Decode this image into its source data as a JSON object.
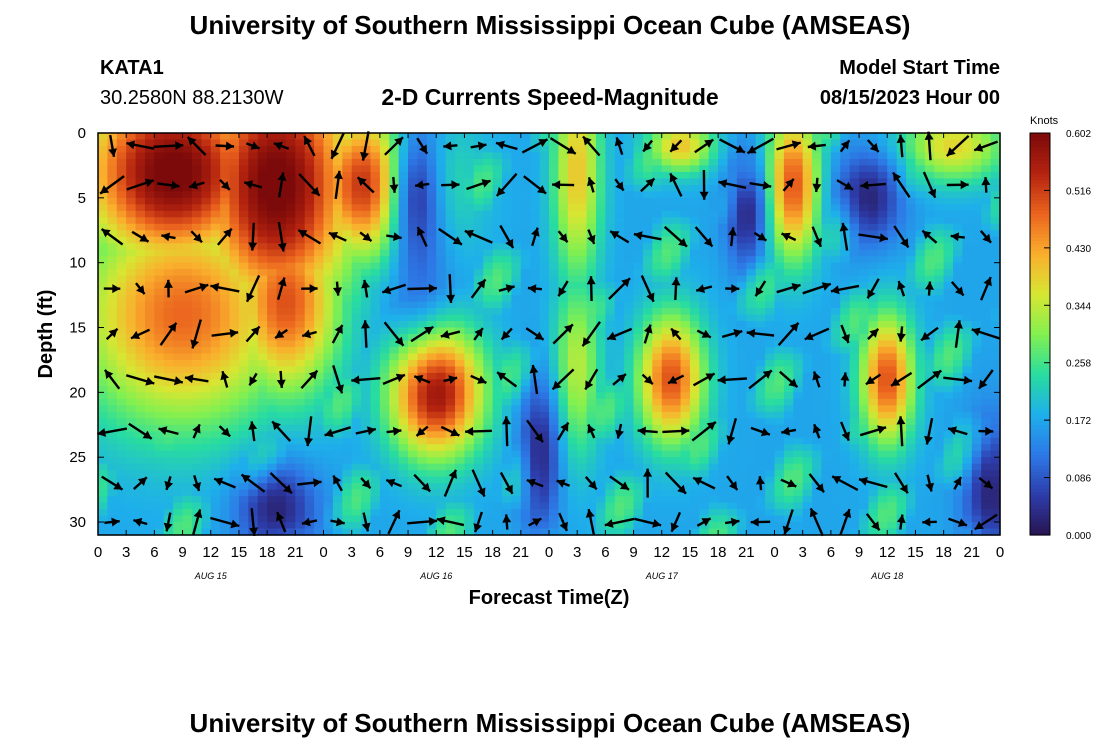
{
  "header": {
    "title": "University of Southern Mississippi Ocean Cube (AMSEAS)",
    "station_id": "KATA1",
    "station_coords": "30.2580N  88.2130W",
    "chart_title": "2-D Currents Speed-Magnitude",
    "model_start_label": "Model Start Time",
    "model_start_value": "08/15/2023 Hour 00"
  },
  "footer": {
    "title": "University of Southern Mississippi Ocean Cube (AMSEAS)"
  },
  "chart_data": {
    "type": "heatmap",
    "title": "2-D Currents Speed-Magnitude",
    "xlabel": "Forecast Time(Z)",
    "ylabel": "Depth (ft)",
    "xlim": [
      0,
      96
    ],
    "ylim": [
      31,
      0
    ],
    "x_ticks": [
      0,
      3,
      6,
      9,
      12,
      15,
      18,
      21,
      24,
      27,
      30,
      33,
      36,
      39,
      42,
      45,
      48,
      51,
      54,
      57,
      60,
      63,
      66,
      69,
      72,
      75,
      78,
      81,
      84,
      87,
      90,
      93,
      96
    ],
    "x_tick_labels": [
      "0",
      "3",
      "6",
      "9",
      "12",
      "15",
      "18",
      "21",
      "0",
      "3",
      "6",
      "9",
      "12",
      "15",
      "18",
      "21",
      "0",
      "3",
      "6",
      "9",
      "12",
      "15",
      "18",
      "21",
      "0",
      "3",
      "6",
      "9",
      "12",
      "15",
      "18",
      "21",
      "0"
    ],
    "day_labels": [
      {
        "hour": 12,
        "label": "AUG 15"
      },
      {
        "hour": 36,
        "label": "AUG 16"
      },
      {
        "hour": 60,
        "label": "AUG 17"
      },
      {
        "hour": 84,
        "label": "AUG 18"
      }
    ],
    "y_ticks": [
      0,
      5,
      10,
      15,
      20,
      25,
      30
    ],
    "colorbar": {
      "label": "Knots",
      "min": 0.0,
      "max": 0.602,
      "tick_values": [
        0.0,
        0.086,
        0.172,
        0.258,
        0.344,
        0.43,
        0.516,
        0.602
      ],
      "tick_labels": [
        "0.000",
        "0.086",
        "0.172",
        "0.258",
        "0.344",
        "0.430",
        "0.516",
        "0.602"
      ]
    },
    "speed_field": {
      "units": "knots",
      "blobs": [
        {
          "hour": 8,
          "depth": 3,
          "sx": 7,
          "sy": 5,
          "value": 0.62
        },
        {
          "hour": 19,
          "depth": 4,
          "sx": 6,
          "sy": 7,
          "value": 0.62
        },
        {
          "hour": 30,
          "depth": 4,
          "sx": 5,
          "sy": 4,
          "value": 0.58
        },
        {
          "hour": 9,
          "depth": 14,
          "sx": 8,
          "sy": 6,
          "value": 0.48
        },
        {
          "hour": 20,
          "depth": 13,
          "sx": 4,
          "sy": 5,
          "value": 0.5
        },
        {
          "hour": 36,
          "depth": 20,
          "sx": 3.5,
          "sy": 3.5,
          "value": 0.58
        },
        {
          "hour": 51,
          "depth": 3,
          "sx": 1.8,
          "sy": 6,
          "value": 0.4
        },
        {
          "hour": 51,
          "depth": 18,
          "sx": 1.8,
          "sy": 5,
          "value": 0.34
        },
        {
          "hour": 61,
          "depth": 19,
          "sx": 2.5,
          "sy": 3.5,
          "value": 0.5
        },
        {
          "hour": 62,
          "depth": 1,
          "sx": 2.5,
          "sy": 1.5,
          "value": 0.4
        },
        {
          "hour": 74,
          "depth": 4,
          "sx": 2,
          "sy": 4,
          "value": 0.5
        },
        {
          "hour": 84,
          "depth": 19,
          "sx": 2,
          "sy": 3.5,
          "value": 0.5
        },
        {
          "hour": 91,
          "depth": 1,
          "sx": 4,
          "sy": 2,
          "value": 0.38
        }
      ],
      "lows": [
        {
          "hour": 34,
          "depth": 5,
          "sx": 2.5,
          "sy": 6,
          "value": 0.28
        },
        {
          "hour": 82,
          "depth": 5,
          "sx": 2.5,
          "sy": 2.5,
          "value": 0.3
        },
        {
          "hour": 19,
          "depth": 29,
          "sx": 3,
          "sy": 2.5,
          "value": 0.3
        },
        {
          "hour": 95,
          "depth": 28,
          "sx": 2,
          "sy": 4,
          "value": 0.25
        },
        {
          "hour": 47,
          "depth": 25,
          "sx": 1.5,
          "sy": 4,
          "value": 0.15
        },
        {
          "hour": 69,
          "depth": 6,
          "sx": 1.5,
          "sy": 3,
          "value": 0.1
        }
      ],
      "base": 0.17
    },
    "vector_grid": {
      "hours": [
        1.5,
        4.5,
        7.5,
        10.5,
        13.5,
        16.5,
        19.5,
        22.5,
        25.5,
        28.5,
        31.5,
        34.5,
        37.5,
        40.5,
        43.5,
        46.5,
        49.5,
        52.5,
        55.5,
        58.5,
        61.5,
        64.5,
        67.5,
        70.5,
        73.5,
        76.5,
        79.5,
        82.5,
        85.5,
        88.5,
        91.5,
        94.5
      ],
      "depths": [
        1,
        4,
        8,
        12,
        15.5,
        19,
        23,
        27,
        30
      ]
    }
  }
}
